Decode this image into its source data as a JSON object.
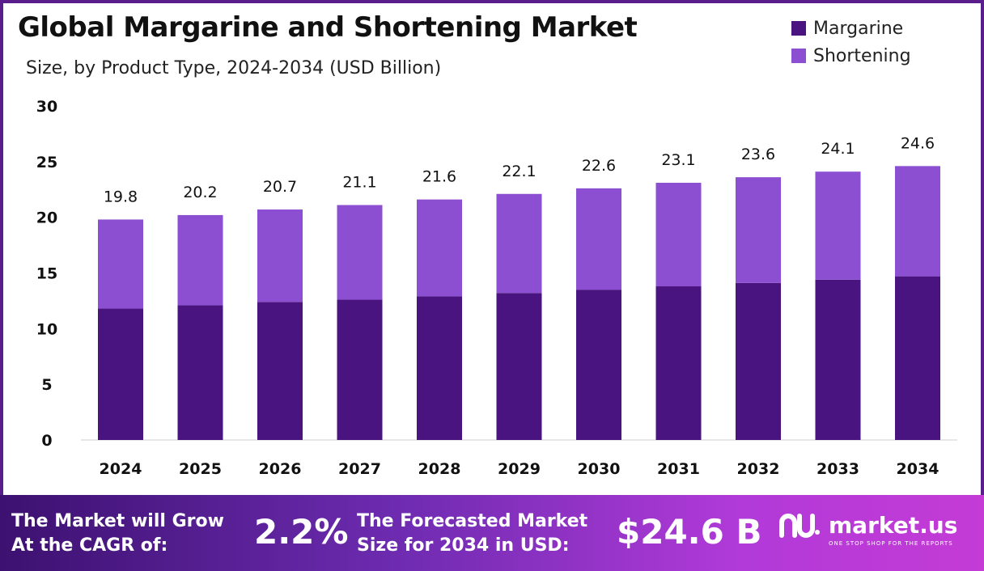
{
  "title": "Global Margarine and Shortening Market",
  "subtitle": "Size, by Product Type, 2024-2034 (USD Billion)",
  "legend": [
    {
      "name": "Margarine",
      "color": "#4a1480"
    },
    {
      "name": "Shortening",
      "color": "#8d4fd2"
    }
  ],
  "chart_data": {
    "type": "bar",
    "stacked": true,
    "categories": [
      "2024",
      "2025",
      "2026",
      "2027",
      "2028",
      "2029",
      "2030",
      "2031",
      "2032",
      "2033",
      "2034"
    ],
    "series": [
      {
        "name": "Margarine",
        "color": "#4a1480",
        "values": [
          11.8,
          12.1,
          12.4,
          12.6,
          12.9,
          13.2,
          13.5,
          13.8,
          14.1,
          14.4,
          14.7
        ]
      },
      {
        "name": "Shortening",
        "color": "#8d4fd2",
        "values": [
          8.0,
          8.1,
          8.3,
          8.5,
          8.7,
          8.9,
          9.1,
          9.3,
          9.5,
          9.7,
          9.9
        ]
      }
    ],
    "totals": [
      "19.8",
      "20.2",
      "20.7",
      "21.1",
      "21.6",
      "22.1",
      "22.6",
      "23.1",
      "23.6",
      "24.1",
      "24.6"
    ],
    "ylim": [
      0,
      30
    ],
    "yticks": [
      0,
      5,
      10,
      15,
      20,
      25,
      30
    ],
    "grid": false,
    "legend_position": "top-right"
  },
  "footer": {
    "cagr_label_line1": "The Market will Grow",
    "cagr_label_line2": "At the CAGR of:",
    "cagr_value": "2.2%",
    "forecast_label_line1": "The Forecasted Market",
    "forecast_label_line2": "Size for 2034 in USD:",
    "forecast_value": "$24.6 B",
    "brand_name": "market.us",
    "brand_tagline": "ONE STOP SHOP FOR THE REPORTS"
  }
}
